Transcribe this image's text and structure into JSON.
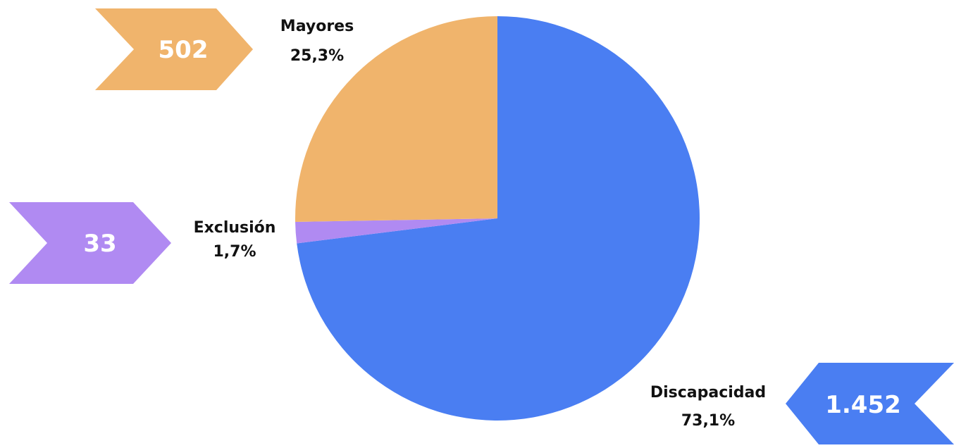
{
  "chart_data": {
    "type": "pie",
    "title": "",
    "slices": [
      {
        "name": "Discapacidad",
        "count": 1452,
        "count_label": "1.452",
        "percent": 73.1,
        "percent_label": "73,1%",
        "color": "#4A7EF2"
      },
      {
        "name": "Exclusión",
        "count": 33,
        "count_label": "33",
        "percent": 1.7,
        "percent_label": "1,7%",
        "color": "#B08AF2"
      },
      {
        "name": "Mayores",
        "count": 502,
        "count_label": "502",
        "percent": 25.3,
        "percent_label": "25,3%",
        "color": "#F0B46C"
      }
    ]
  }
}
